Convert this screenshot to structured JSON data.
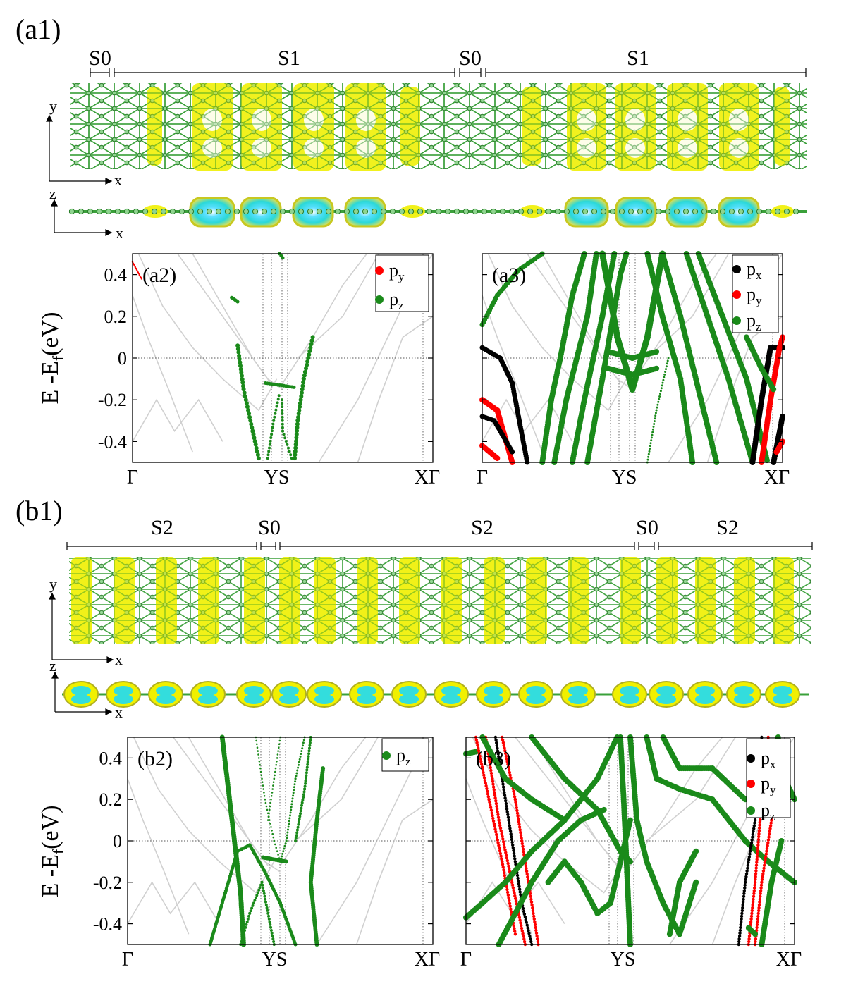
{
  "colors": {
    "px": "#000000",
    "py": "#ff0000",
    "pz": "#1a8a1a",
    "iso_yellow": "#f0f000",
    "iso_cyan": "#33dddd",
    "bond": "#3aa03a",
    "grey_band": "#d0d0d0"
  },
  "panel_a1": {
    "label": "(a1)",
    "segments": [
      "S0",
      "S1",
      "S0",
      "S1"
    ],
    "axes_top": [
      "y",
      "x"
    ],
    "axes_side": [
      "z",
      "x"
    ]
  },
  "panel_b1": {
    "label": "(b1)",
    "segments": [
      "S2",
      "S0",
      "S2",
      "S0",
      "S2"
    ],
    "axes_top": [
      "y",
      "x"
    ],
    "axes_side": [
      "z",
      "x"
    ]
  },
  "band_panels": [
    {
      "label": "(a2)",
      "legend": [
        "p_y",
        "p_z"
      ]
    },
    {
      "label": "(a3)",
      "legend": [
        "p_x",
        "p_y",
        "p_z"
      ]
    },
    {
      "label": "(b2)",
      "legend": [
        "p_z"
      ]
    },
    {
      "label": "(b3)",
      "legend": [
        "p_x",
        "p_y",
        "p_z"
      ]
    }
  ],
  "energy_axis": {
    "ylabel_main": "E -E",
    "ylabel_sub": "f",
    "ylabel_unit": "(eV)",
    "ylim": [
      -0.5,
      0.5
    ],
    "ticks": [
      "0.4",
      "0.2",
      "0",
      "-0.2",
      "-0.4"
    ],
    "tick_values": [
      0.4,
      0.2,
      0,
      -0.2,
      -0.4
    ]
  },
  "kpath": {
    "labels": [
      "Γ",
      "YS",
      "XΓ"
    ]
  }
}
